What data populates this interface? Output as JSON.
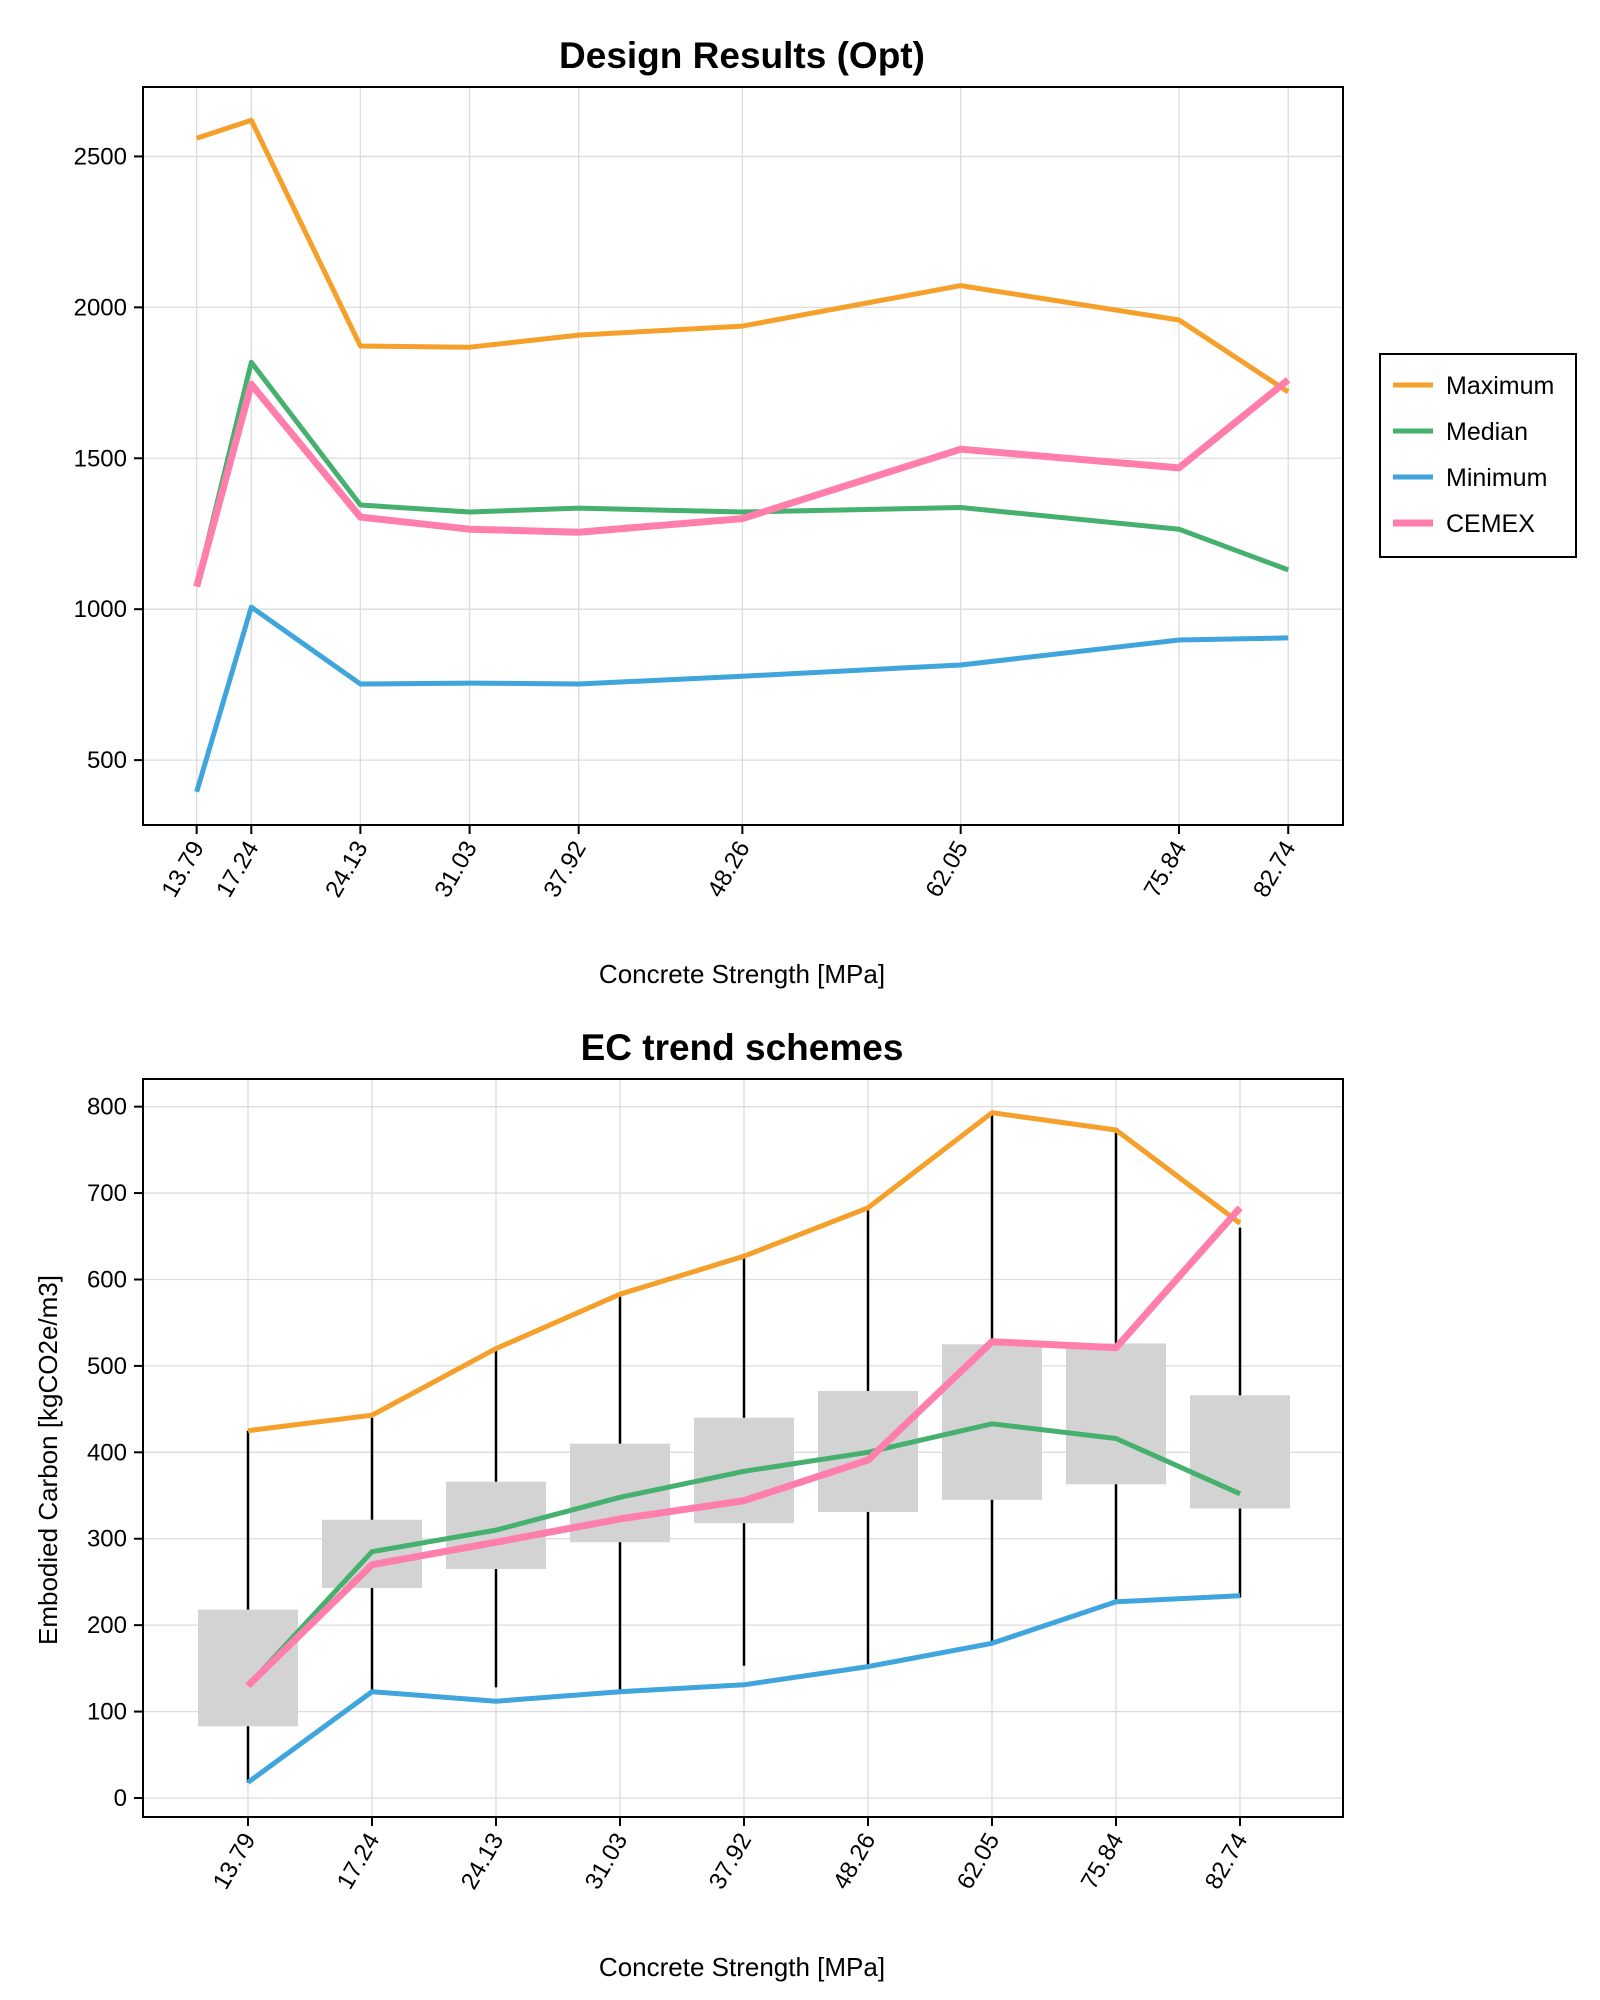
{
  "chart_data": [
    {
      "type": "line",
      "title": "Design Results (Opt)",
      "xlabel": "Concrete Strength [MPa]",
      "ylabel": "",
      "x": [
        13.79,
        17.24,
        24.13,
        31.03,
        37.92,
        48.26,
        62.05,
        75.84,
        82.74
      ],
      "x_tick_labels": [
        "13.79",
        "17.24",
        "24.13",
        "31.03",
        "37.92",
        "48.26",
        "62.05",
        "75.84",
        "82.74"
      ],
      "yticks": [
        500,
        1000,
        1500,
        2000,
        2500
      ],
      "ylim": [
        285,
        2730
      ],
      "xlim": [
        10.4,
        86.2
      ],
      "grid": true,
      "legend": "right-outside",
      "series": [
        {
          "name": "Maximum",
          "color": "#f5a02a",
          "values": [
            2560,
            2620,
            1872,
            1868,
            1908,
            1938,
            2072,
            1958,
            1720
          ]
        },
        {
          "name": "Median",
          "color": "#46b06e",
          "values": [
            1075,
            1818,
            1345,
            1322,
            1335,
            1322,
            1337,
            1265,
            1130
          ]
        },
        {
          "name": "Minimum",
          "color": "#3fa5dc",
          "values": [
            395,
            1007,
            752,
            755,
            752,
            778,
            815,
            898,
            905
          ]
        },
        {
          "name": "CEMEX",
          "color": "#ff7eac",
          "values": [
            1075,
            1745,
            1305,
            1265,
            1255,
            1300,
            1530,
            1468,
            1760
          ]
        }
      ]
    },
    {
      "type": "boxplot+line",
      "title": "EC trend schemes",
      "xlabel": "Concrete Strength [MPa]",
      "ylabel": "Embodied Carbon [kgCO2e/m3]",
      "categories": [
        "13.79",
        "17.24",
        "24.13",
        "31.03",
        "37.92",
        "48.26",
        "62.05",
        "75.84",
        "82.74"
      ],
      "yticks": [
        0,
        100,
        200,
        300,
        400,
        500,
        600,
        700,
        800
      ],
      "ylim": [
        -22,
        832
      ],
      "grid": true,
      "boxes": [
        {
          "whisker_low": 18,
          "q1": 83,
          "q3": 218,
          "whisker_high": 425
        },
        {
          "whisker_low": 125,
          "q1": 243,
          "q3": 322,
          "whisker_high": 440
        },
        {
          "whisker_low": 128,
          "q1": 265,
          "q3": 366,
          "whisker_high": 520
        },
        {
          "whisker_low": 125,
          "q1": 296,
          "q3": 410,
          "whisker_high": 583
        },
        {
          "whisker_low": 153,
          "q1": 318,
          "q3": 440,
          "whisker_high": 625
        },
        {
          "whisker_low": 152,
          "q1": 331,
          "q3": 471,
          "whisker_high": 680
        },
        {
          "whisker_low": 178,
          "q1": 345,
          "q3": 525,
          "whisker_high": 790
        },
        {
          "whisker_low": 225,
          "q1": 363,
          "q3": 526,
          "whisker_high": 770
        },
        {
          "whisker_low": 232,
          "q1": 335,
          "q3": 466,
          "whisker_high": 660
        }
      ],
      "series": [
        {
          "name": "Maximum",
          "color": "#f5a02a",
          "values": [
            425,
            443,
            520,
            583,
            627,
            683,
            793,
            773,
            665
          ]
        },
        {
          "name": "Median",
          "color": "#46b06e",
          "values": [
            130,
            285,
            310,
            348,
            378,
            400,
            433,
            416,
            352
          ]
        },
        {
          "name": "Minimum",
          "color": "#3fa5dc",
          "values": [
            18,
            123,
            112,
            123,
            131,
            152,
            179,
            227,
            234
          ]
        },
        {
          "name": "CEMEX",
          "color": "#ff7eac",
          "values": [
            130,
            270,
            296,
            323,
            344,
            391,
            528,
            521,
            683
          ]
        }
      ]
    }
  ]
}
